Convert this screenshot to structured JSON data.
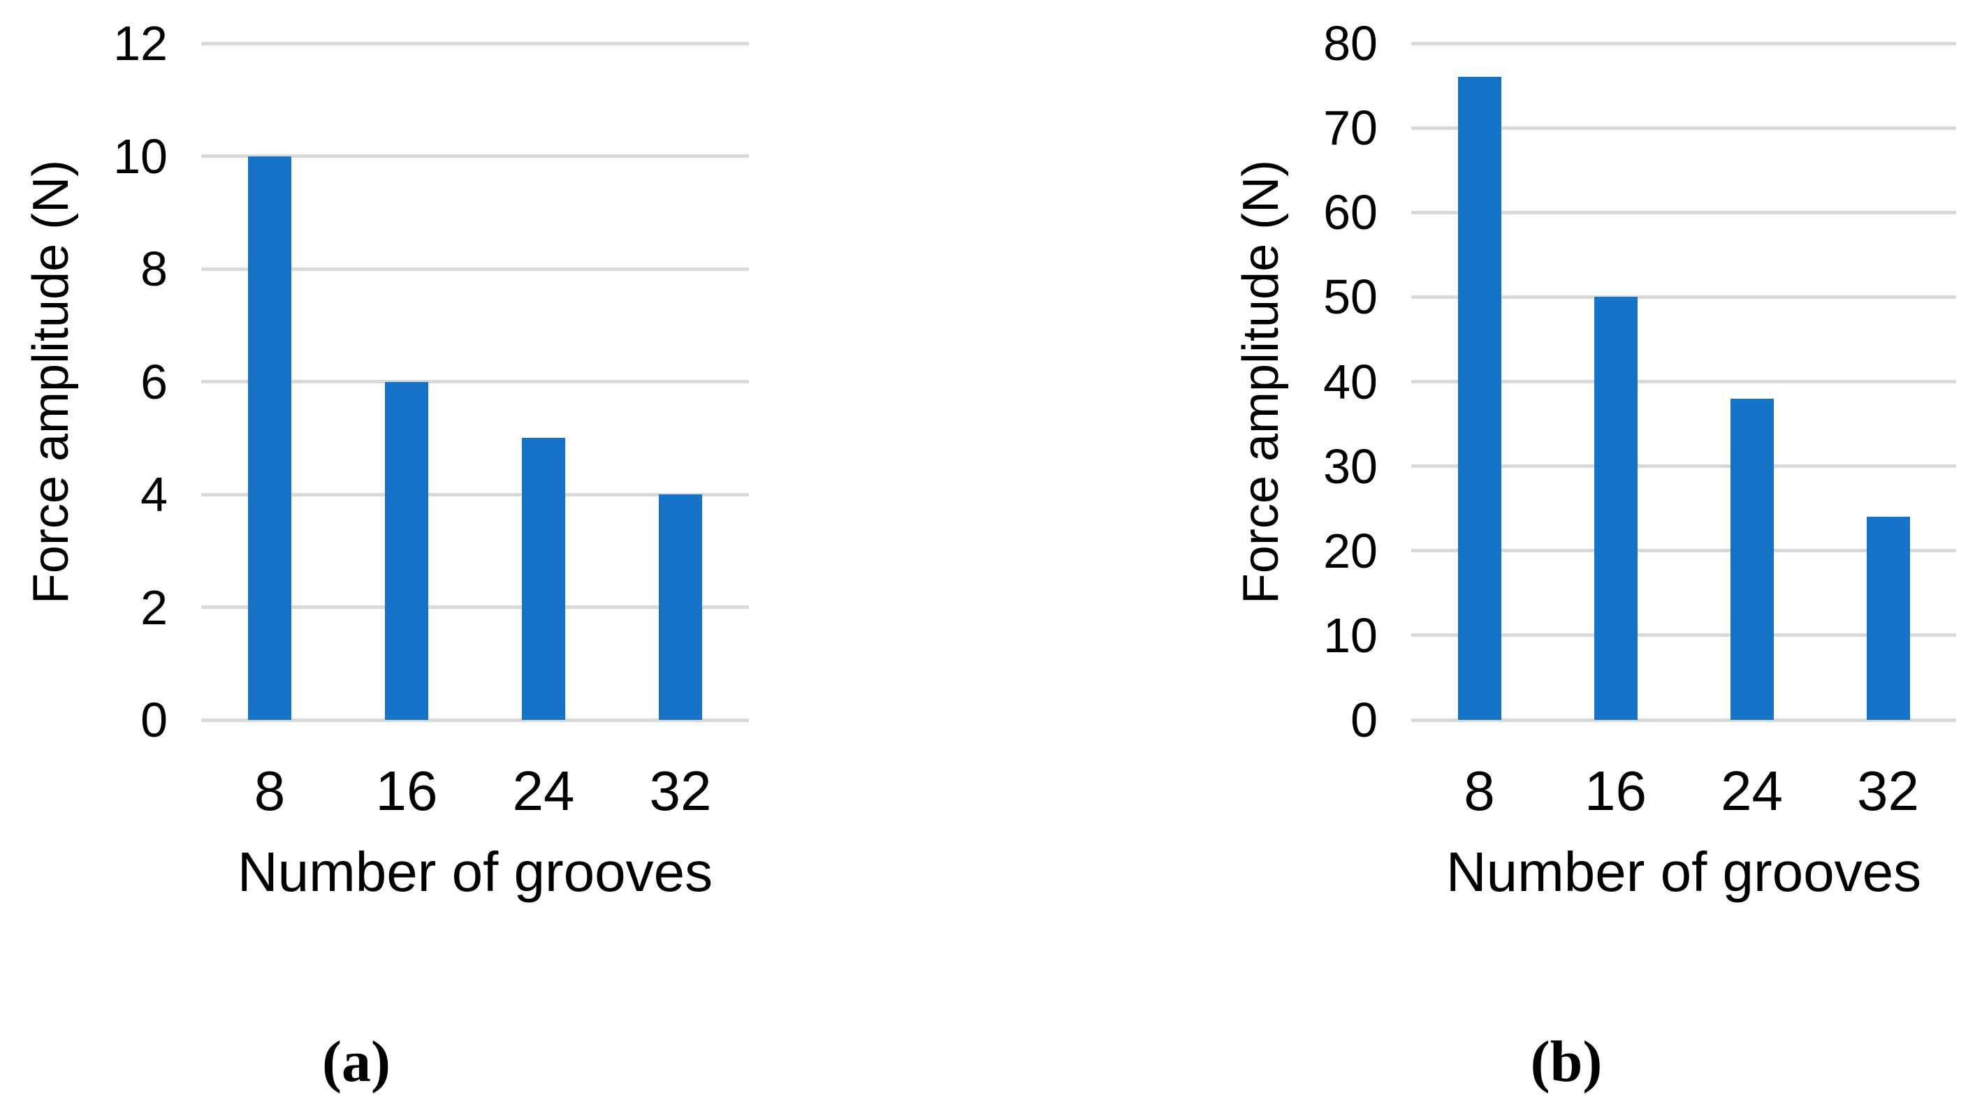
{
  "figure": {
    "background": "#FFFFFF",
    "text_color": "#000000"
  },
  "chart_data": [
    {
      "type": "bar",
      "panel_label": "(a)",
      "categories": [
        "8",
        "16",
        "24",
        "32"
      ],
      "values": [
        10,
        6,
        5,
        4
      ],
      "xlabel": "Number of grooves",
      "ylabel": "Force amplitude (N)",
      "ylim": [
        0,
        12
      ],
      "yticks": [
        0,
        2,
        4,
        6,
        8,
        10,
        12
      ],
      "grid": true,
      "legend": "none",
      "bar_color": "#1673C7",
      "grid_color": "#D9D9D9"
    },
    {
      "type": "bar",
      "panel_label": "(b)",
      "categories": [
        "8",
        "16",
        "24",
        "32"
      ],
      "values": [
        76,
        50,
        38,
        24
      ],
      "xlabel": "Number of grooves",
      "ylabel": "Force amplitude (N)",
      "ylim": [
        0,
        80
      ],
      "yticks": [
        0,
        10,
        20,
        30,
        40,
        50,
        60,
        70,
        80
      ],
      "grid": true,
      "legend": "none",
      "bar_color": "#1673C7",
      "grid_color": "#D9D9D9"
    }
  ]
}
